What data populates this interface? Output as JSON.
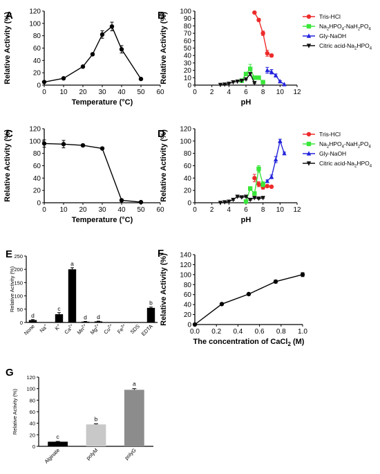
{
  "figure": {
    "panel_labels": [
      "A",
      "B",
      "C",
      "D",
      "E",
      "F",
      "G"
    ]
  },
  "chart_data": [
    {
      "id": "A",
      "type": "line",
      "xlabel": "Temperature (°C)",
      "ylabel": "Relative Activity (%)",
      "xlim": [
        0,
        60
      ],
      "ylim": [
        0,
        120
      ],
      "xticks": [
        0,
        10,
        20,
        30,
        40,
        50,
        60
      ],
      "yticks": [
        0,
        20,
        40,
        60,
        80,
        100,
        120
      ],
      "series": [
        {
          "color": "#000000",
          "marker": "circle",
          "x": [
            0,
            10,
            20,
            25,
            30,
            35,
            40,
            50
          ],
          "y": [
            5,
            11,
            30,
            50,
            82,
            95,
            58,
            10
          ],
          "err": [
            0,
            1,
            2,
            2,
            6,
            7,
            6,
            1
          ]
        }
      ]
    },
    {
      "id": "B",
      "type": "line",
      "xlabel": "pH",
      "ylabel": "Relative Activity (%)",
      "xlim": [
        0,
        12
      ],
      "ylim": [
        0,
        100
      ],
      "xticks": [
        0,
        2,
        4,
        6,
        8,
        10,
        12
      ],
      "yticks": [
        0,
        10,
        20,
        30,
        40,
        50,
        60,
        70,
        80,
        90,
        100
      ],
      "legend": "top-right",
      "series": [
        {
          "name": "Tris-HCl",
          "color": "#ee2b2b",
          "marker": "circle",
          "x": [
            7.0,
            7.5,
            8.0,
            8.5,
            9.0
          ],
          "y": [
            98,
            88,
            70,
            43,
            40
          ],
          "err": [
            0,
            2,
            3,
            4,
            2
          ]
        },
        {
          "name": "Na2HPO4-NaH2PO4",
          "name_main": "Na",
          "name_parts": [
            "2",
            "HPO",
            "4",
            "-NaH",
            "2",
            "PO",
            "4"
          ],
          "color": "#39e639",
          "marker": "square",
          "x": [
            5.5,
            6.0,
            6.5,
            7.0,
            7.5,
            8.0
          ],
          "y": [
            6,
            15,
            22,
            10,
            10,
            4
          ],
          "err": [
            0,
            2,
            6,
            2,
            2,
            1
          ]
        },
        {
          "name": "Gly-NaOH",
          "color": "#2424dd",
          "marker": "triangle",
          "x": [
            8.5,
            9.0,
            9.5,
            10.0,
            10.5
          ],
          "y": [
            20,
            18,
            13,
            5,
            1
          ],
          "err": [
            4,
            3,
            2,
            1,
            0
          ]
        },
        {
          "name": "Citric acid-Na2HPO4",
          "name_main": "Citric acid-Na",
          "name_parts": [
            "2",
            "HPO",
            "4"
          ],
          "color": "#111111",
          "marker": "triangle-down",
          "x": [
            3.0,
            3.5,
            4.0,
            4.5,
            5.0,
            5.5,
            6.0,
            6.5,
            7.0
          ],
          "y": [
            0.5,
            1,
            2,
            4,
            5,
            6,
            8,
            15,
            3
          ],
          "err": [
            0,
            0,
            0,
            0,
            0,
            0,
            1,
            2,
            1
          ]
        }
      ]
    },
    {
      "id": "C",
      "type": "line",
      "xlabel": "Temperature (°C)",
      "ylabel": "Relative Activity (%)",
      "xlim": [
        0,
        60
      ],
      "ylim": [
        0,
        120
      ],
      "xticks": [
        0,
        10,
        20,
        30,
        40,
        50,
        60
      ],
      "yticks": [
        0,
        20,
        40,
        60,
        80,
        100,
        120
      ],
      "series": [
        {
          "color": "#000000",
          "marker": "circle",
          "x": [
            0,
            10,
            20,
            30,
            40,
            50
          ],
          "y": [
            96,
            95,
            93,
            88,
            4,
            1
          ],
          "err": [
            6,
            6,
            1,
            1,
            0,
            0
          ]
        }
      ]
    },
    {
      "id": "D",
      "type": "line",
      "xlabel": "pH",
      "ylabel": "Relative Activity (%)",
      "xlim": [
        0,
        12
      ],
      "ylim": [
        0,
        120
      ],
      "xticks": [
        0,
        2,
        4,
        6,
        8,
        10,
        12
      ],
      "yticks": [
        0,
        20,
        40,
        60,
        80,
        100,
        120
      ],
      "legend": "top-right",
      "series": [
        {
          "name": "Tris-HCl",
          "color": "#ee2b2b",
          "marker": "circle",
          "x": [
            7.0,
            7.5,
            8.0,
            8.5,
            9.0
          ],
          "y": [
            40,
            30,
            25,
            27,
            26
          ],
          "err": [
            6,
            4,
            3,
            2,
            1
          ]
        },
        {
          "name": "Na2HPO4-NaH2PO4",
          "name_main": "Na",
          "name_parts": [
            "2",
            "HPO",
            "4",
            "-NaH",
            "2",
            "PO",
            "4"
          ],
          "color": "#39e639",
          "marker": "square",
          "x": [
            6.0,
            6.5,
            7.0,
            7.5,
            8.0
          ],
          "y": [
            2,
            23,
            15,
            55,
            30
          ],
          "err": [
            0,
            3,
            2,
            5,
            4
          ]
        },
        {
          "name": "Gly-NaOH",
          "color": "#2424dd",
          "marker": "triangle",
          "x": [
            8.5,
            9.0,
            9.5,
            10.0,
            10.5
          ],
          "y": [
            35,
            42,
            70,
            100,
            80
          ],
          "err": [
            2,
            3,
            5,
            3,
            2
          ]
        },
        {
          "name": "Citric acid-Na2HPO4",
          "name_main": "Citric acid-Na",
          "name_parts": [
            "2",
            "HPO",
            "4"
          ],
          "color": "#111111",
          "marker": "triangle-down",
          "x": [
            3.0,
            3.5,
            4.0,
            4.5,
            5.0,
            5.5,
            6.0,
            6.5,
            7.0,
            7.5,
            8.0
          ],
          "y": [
            0,
            1,
            2,
            5,
            10,
            9,
            10,
            5,
            8,
            7,
            8
          ],
          "err": [
            0,
            0,
            0,
            1,
            1,
            1,
            1,
            1,
            1,
            1,
            1
          ]
        }
      ]
    },
    {
      "id": "E",
      "type": "bar",
      "ylabel": "Relative Activity (%)",
      "ylim": [
        0,
        250
      ],
      "yticks": [
        0,
        50,
        100,
        150,
        200,
        250
      ],
      "categories": [
        "None",
        "Na",
        "K",
        "Ca",
        "Mn",
        "Mg",
        "Cu",
        "Fe",
        "SDS",
        "EDTA"
      ],
      "category_sup": [
        "",
        "+",
        "+",
        "2+",
        "2+",
        "2+",
        "2+",
        "3+",
        "",
        ""
      ],
      "values": [
        9,
        0,
        31,
        200,
        3,
        4,
        0,
        0,
        0,
        55
      ],
      "err": [
        2,
        0,
        6,
        6,
        1,
        1,
        0,
        0,
        0,
        3
      ],
      "labels": [
        "d",
        "",
        "c",
        "a",
        "d",
        "d",
        "",
        "",
        "",
        "b"
      ],
      "color": "#000000"
    },
    {
      "id": "F",
      "type": "line",
      "xlabel": "The concentration of CaCl2 (M)",
      "xlabel_main": "The concentration of CaCl",
      "xlabel_sub": "2",
      "xlabel_tail": " (M)",
      "ylabel": "Relative Activity (%)",
      "xlim": [
        0,
        1.0
      ],
      "ylim": [
        0,
        140
      ],
      "xticks": [
        0.0,
        0.2,
        0.4,
        0.6,
        0.8,
        1.0
      ],
      "xtick_labels": [
        "0.0",
        "0.2",
        "0.4",
        "0.6",
        "0.8",
        "1.0"
      ],
      "yticks": [
        0,
        20,
        40,
        60,
        80,
        100,
        120,
        140
      ],
      "series": [
        {
          "color": "#000000",
          "marker": "circle",
          "x": [
            0,
            0.25,
            0.5,
            0.75,
            1.0
          ],
          "y": [
            0,
            41,
            61,
            86,
            100
          ],
          "err": [
            0,
            1,
            1,
            3,
            4
          ]
        }
      ]
    },
    {
      "id": "G",
      "type": "bar",
      "ylabel": "Relative Activity (%)",
      "ylim": [
        0,
        120
      ],
      "yticks": [
        0,
        20,
        40,
        60,
        80,
        100,
        120
      ],
      "categories": [
        "Alginate",
        "polyM",
        "polyG"
      ],
      "values": [
        8,
        38,
        98
      ],
      "err": [
        0.5,
        1,
        2
      ],
      "labels": [
        "c",
        "b",
        "a"
      ],
      "colors": [
        "#000000",
        "#c8c8c8",
        "#8c8c8c"
      ]
    }
  ]
}
